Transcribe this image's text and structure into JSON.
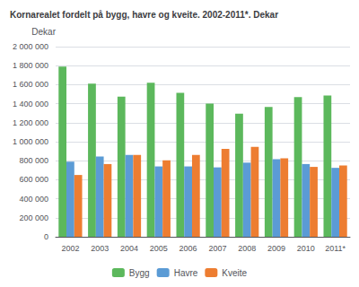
{
  "chart_data": {
    "type": "bar",
    "title": "Kornarealet fordelt på bygg, havre og kveite. 2002-2011*. Dekar",
    "ylabel": "Dekar",
    "categories": [
      "2002",
      "2003",
      "2004",
      "2005",
      "2006",
      "2007",
      "2008",
      "2009",
      "2010",
      "2011*"
    ],
    "series": [
      {
        "name": "Bygg",
        "color": "#5cb85c",
        "values": [
          1790000,
          1610000,
          1475000,
          1620000,
          1515000,
          1400000,
          1295000,
          1365000,
          1470000,
          1485000
        ]
      },
      {
        "name": "Havre",
        "color": "#5b9bd5",
        "values": [
          790000,
          845000,
          860000,
          740000,
          740000,
          730000,
          780000,
          815000,
          765000,
          725000
        ]
      },
      {
        "name": "Kveite",
        "color": "#ed7d31",
        "values": [
          650000,
          765000,
          860000,
          805000,
          860000,
          925000,
          945000,
          825000,
          735000,
          750000
        ]
      }
    ],
    "ylim": [
      0,
      2000000
    ],
    "yticks": [
      0,
      {
        "value": 200000,
        "label": "200 000"
      },
      {
        "value": 400000,
        "label": "400 000"
      },
      {
        "value": 600000,
        "label": "600 000"
      },
      {
        "value": 800000,
        "label": "800 000"
      },
      {
        "value": 1000000,
        "label": "1 000 000"
      },
      {
        "value": 1200000,
        "label": "1 200 000"
      },
      {
        "value": 1400000,
        "label": "1 400 000"
      },
      {
        "value": 1600000,
        "label": "1 600 000"
      },
      {
        "value": 1800000,
        "label": "1 800 000"
      },
      {
        "value": 2000000,
        "label": "2 000 000"
      }
    ],
    "grid": true,
    "legend": "bottom"
  }
}
